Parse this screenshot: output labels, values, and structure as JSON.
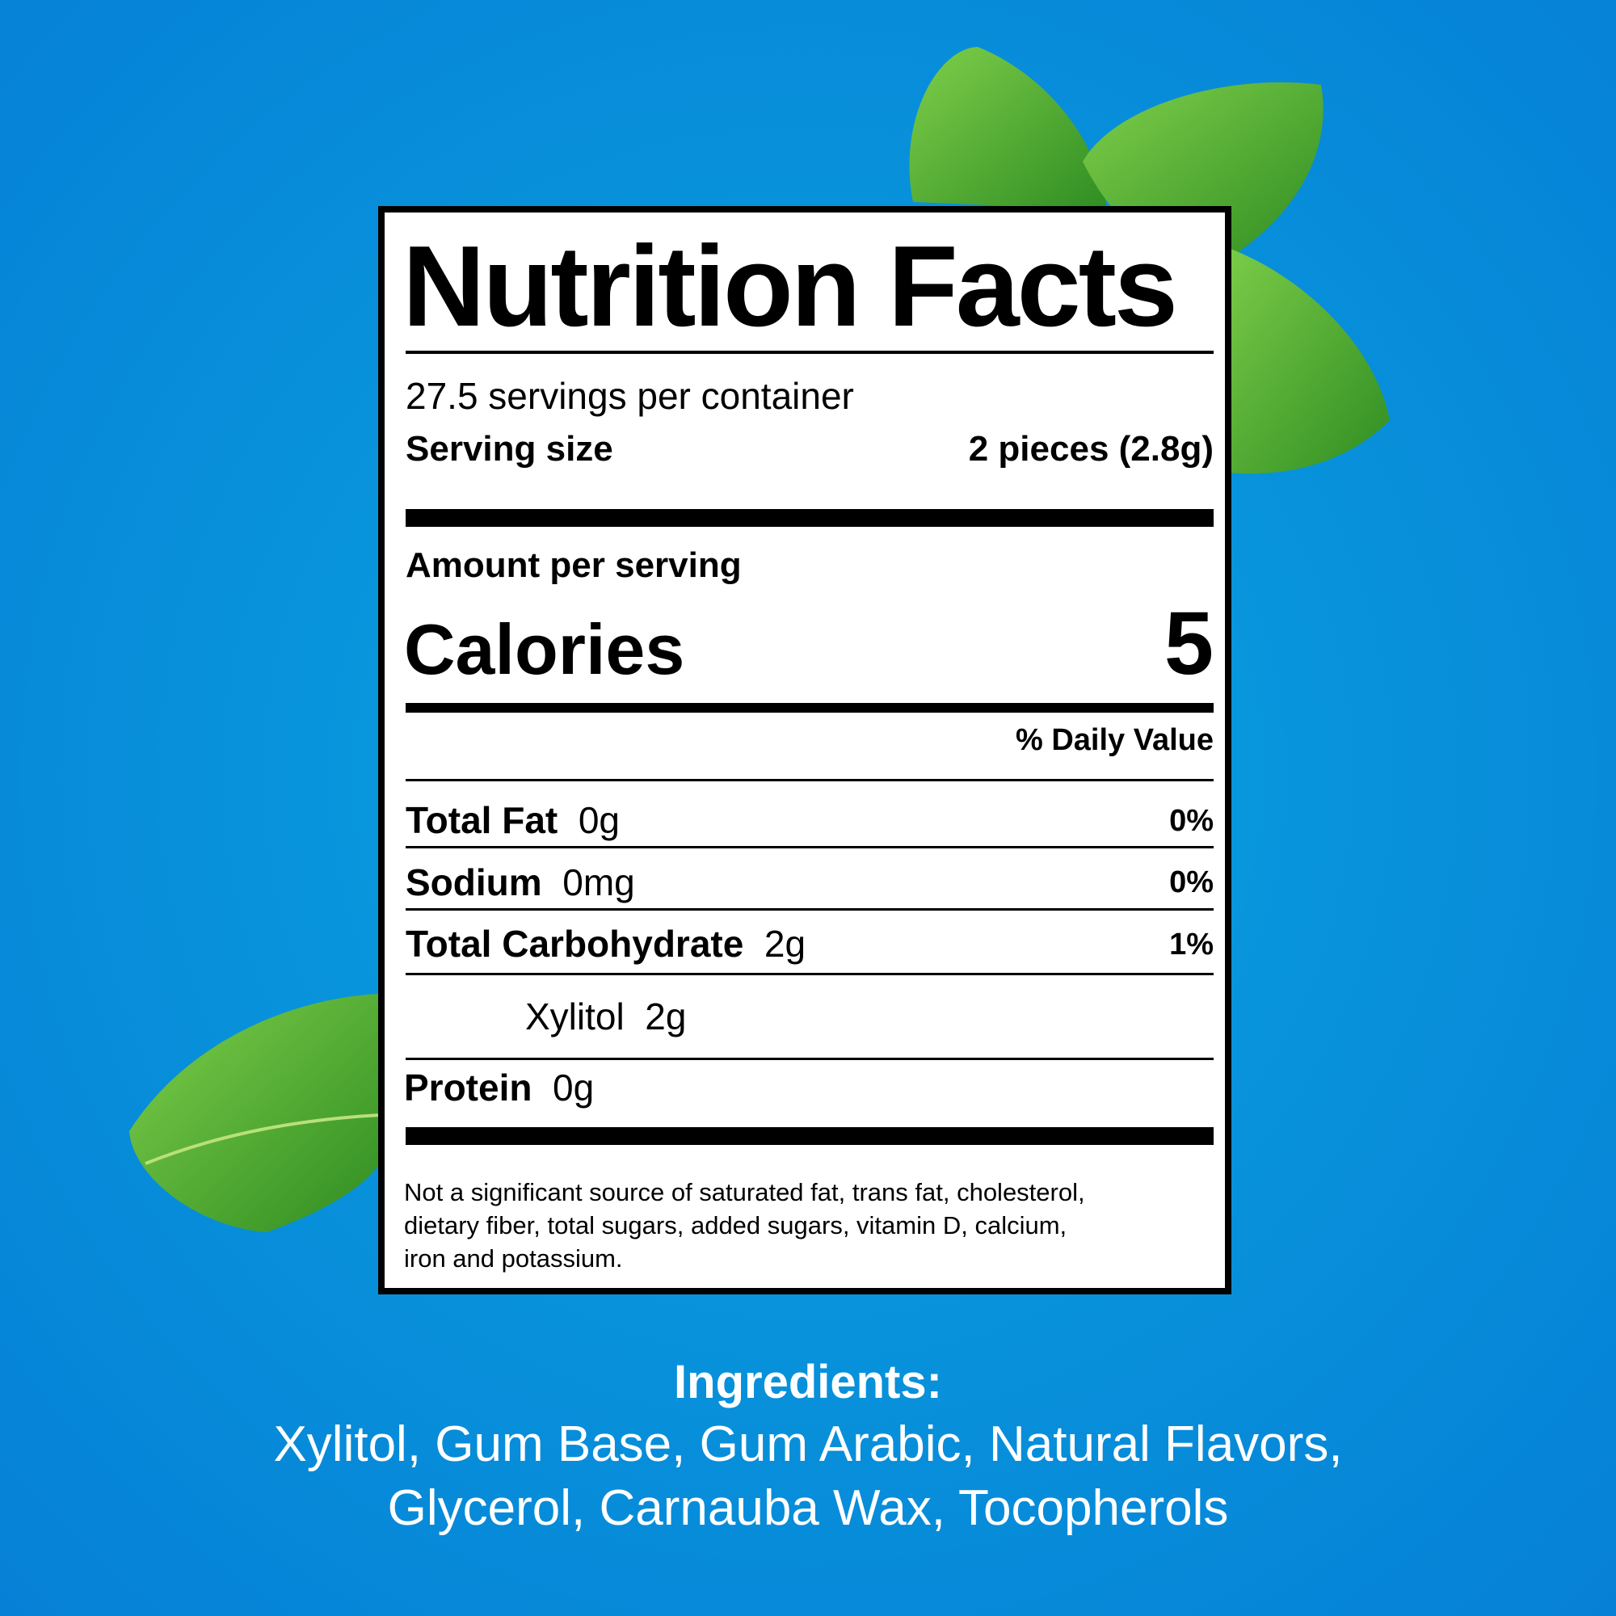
{
  "label": {
    "title": "Nutrition Facts",
    "servings_per_container": "27.5 servings per container",
    "serving_size_label": "Serving size",
    "serving_size_value": "2 pieces (2.8g)",
    "amount_per_serving": "Amount per serving",
    "calories_label": "Calories",
    "calories_value": "5",
    "daily_value_header": "% Daily Value",
    "nutrients": [
      {
        "name": "Total Fat",
        "amount": "0g",
        "dv": "0%"
      },
      {
        "name": "Sodium",
        "amount": "0mg",
        "dv": "0%"
      },
      {
        "name": "Total Carbohydrate",
        "amount": "2g",
        "dv": "1%"
      },
      {
        "name": "Xylitol",
        "amount": "2g"
      },
      {
        "name": "Protein",
        "amount": "0g"
      }
    ],
    "footnote": [
      "Not a significant source of saturated fat, trans fat, cholesterol,",
      "dietary fiber, total sugars, added sugars, vitamin D, calcium,",
      "iron and potassium."
    ]
  },
  "ingredients": {
    "heading": "Ingredients:",
    "lines": [
      "Xylitol, Gum Base, Gum Arabic, Natural Flavors,",
      "Glycerol, Carnauba Wax, Tocopherols"
    ]
  },
  "colors": {
    "background": "#0895dc",
    "leaf": "#4caf2e"
  }
}
